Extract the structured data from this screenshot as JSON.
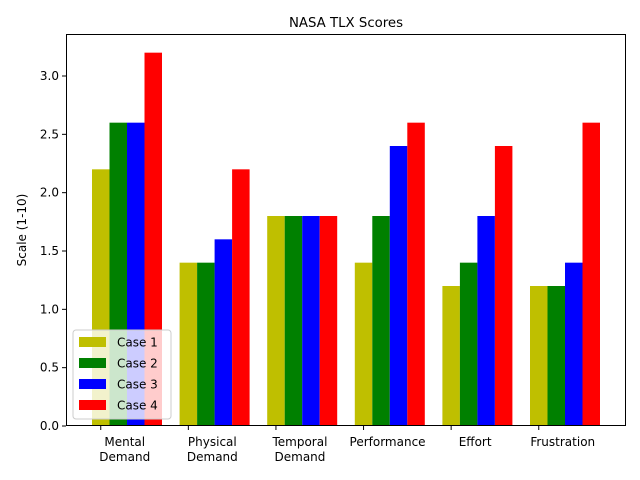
{
  "chart_data": {
    "type": "bar",
    "title": "NASA TLX Scores",
    "xlabel": "",
    "ylabel": "Scale (1-10)",
    "categories": [
      [
        "Mental",
        "Demand"
      ],
      [
        "Physical",
        "Demand"
      ],
      [
        "Temporal",
        "Demand"
      ],
      [
        "Performance"
      ],
      [
        "Effort"
      ],
      [
        "Frustration"
      ]
    ],
    "series": [
      {
        "name": "Case 1",
        "color": "#bfbf00",
        "values": [
          2.2,
          1.4,
          1.8,
          1.4,
          1.2,
          1.2
        ]
      },
      {
        "name": "Case 2",
        "color": "#008000",
        "values": [
          2.6,
          1.4,
          1.8,
          1.8,
          1.4,
          1.2
        ]
      },
      {
        "name": "Case 3",
        "color": "#0000ff",
        "values": [
          2.6,
          1.6,
          1.8,
          2.4,
          1.8,
          1.4
        ]
      },
      {
        "name": "Case 4",
        "color": "#ff0000",
        "values": [
          3.2,
          2.2,
          1.8,
          2.6,
          2.4,
          2.6
        ]
      }
    ],
    "yticks": [
      "0.0",
      "0.5",
      "1.0",
      "1.5",
      "2.0",
      "2.5",
      "3.0"
    ],
    "ylim": [
      0,
      3.36
    ],
    "grid": false,
    "legend": "lower-left"
  }
}
